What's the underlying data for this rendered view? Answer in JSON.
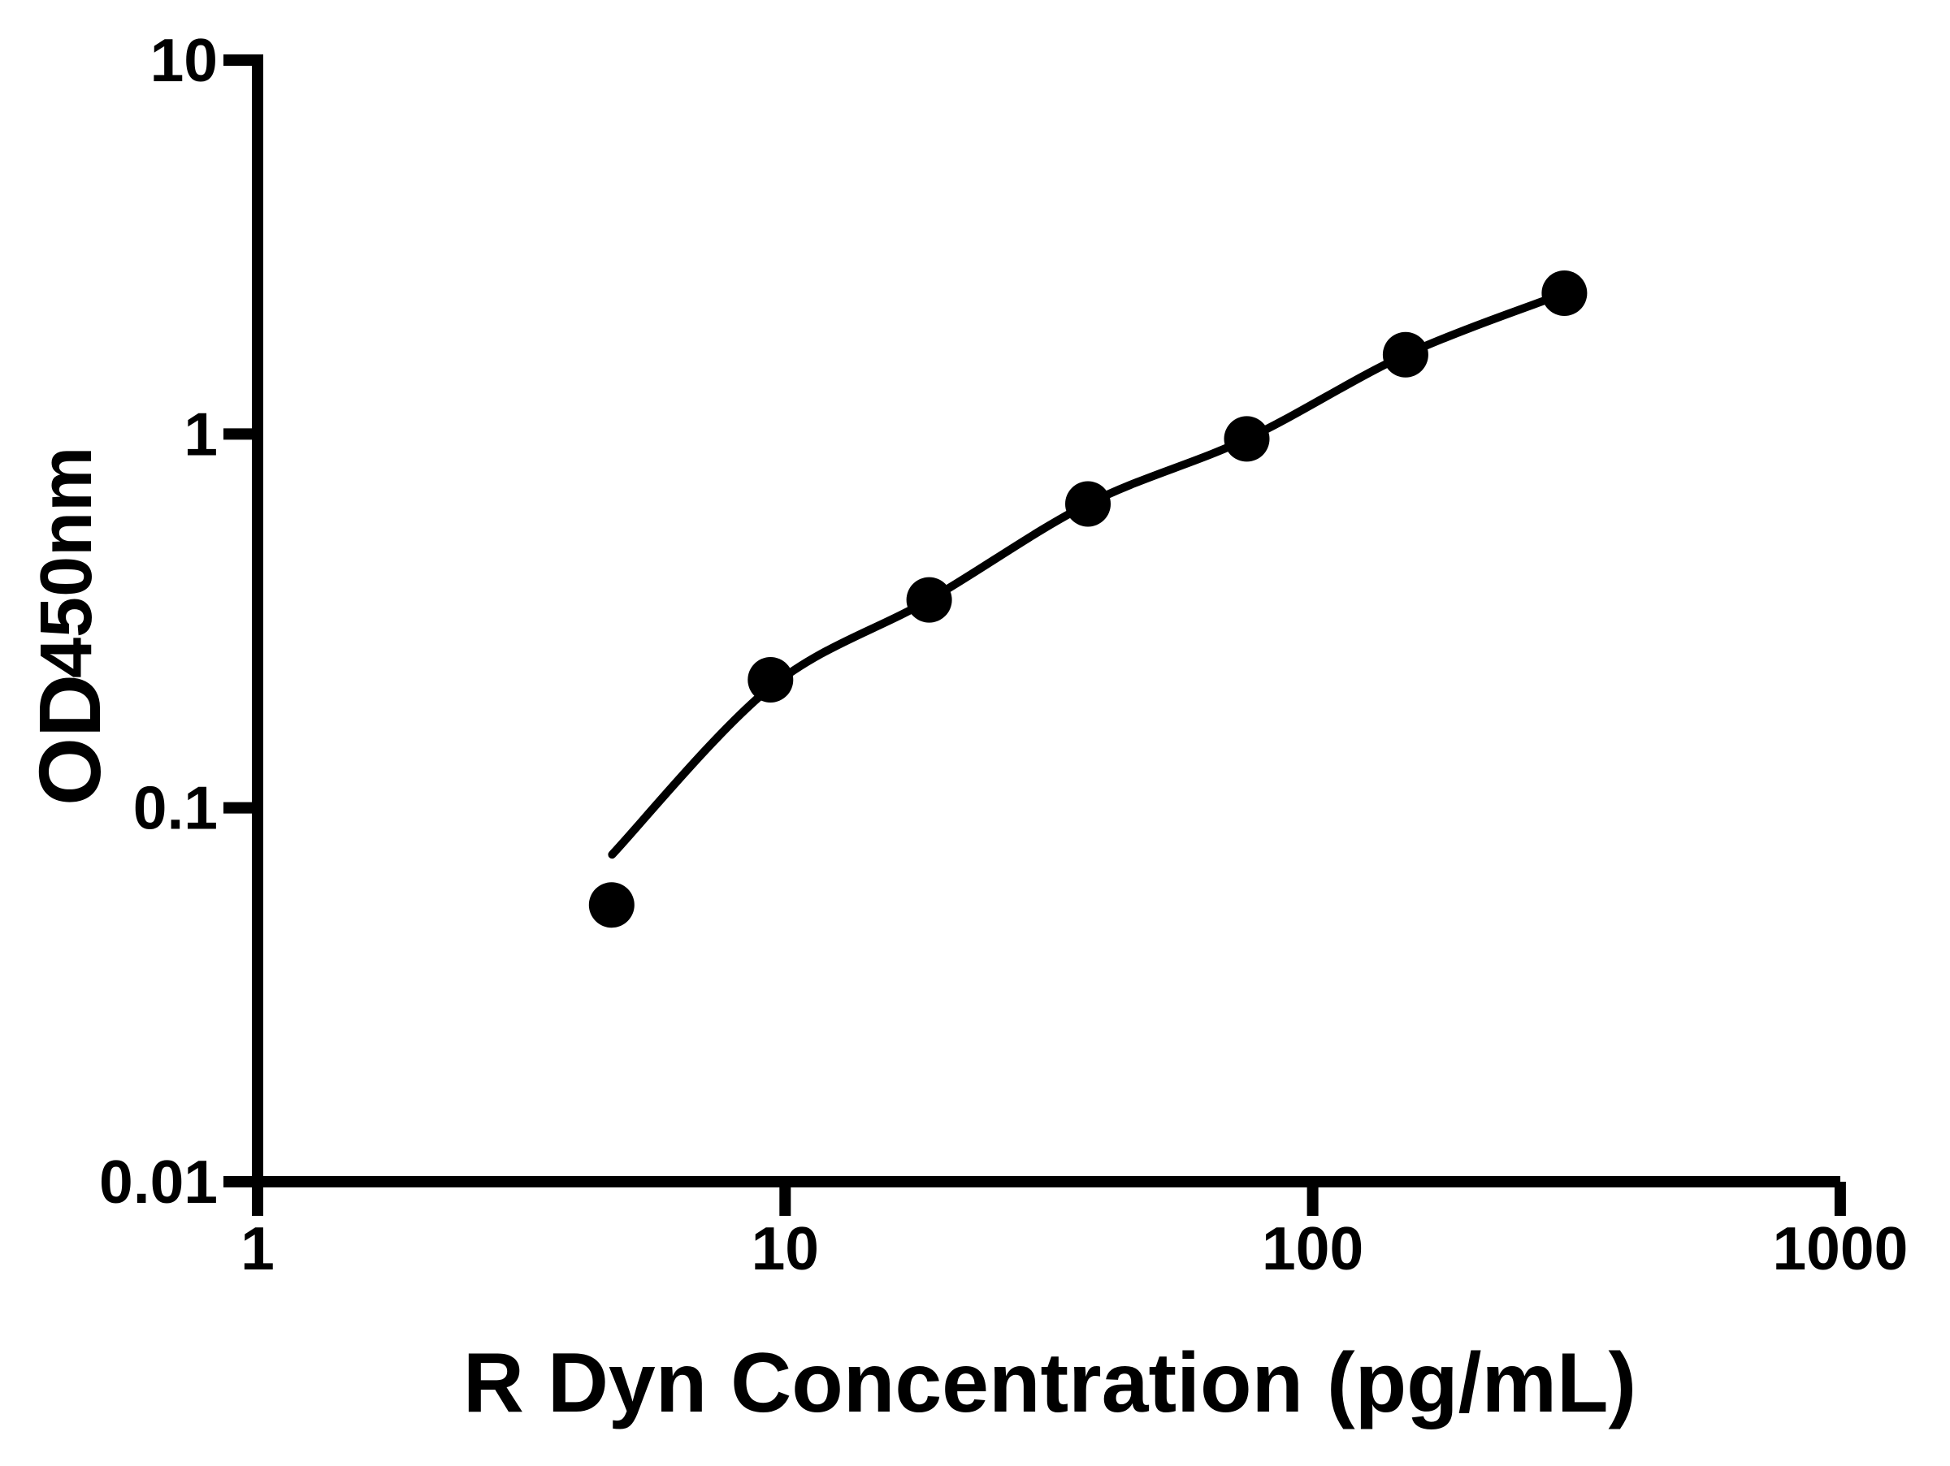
{
  "figure": {
    "background_color": "#ffffff",
    "foreground_color": "#000000"
  },
  "chart_data": {
    "type": "scatter",
    "title": "",
    "xlabel": "R Dyn Concentration (pg/mL)",
    "ylabel": "OD450nm",
    "ylabel_main": "OD",
    "ylabel_subscript": "450nm",
    "x_scale": "log",
    "y_scale": "log",
    "xlim": [
      1,
      1000
    ],
    "ylim": [
      0.01,
      10
    ],
    "grid": "off",
    "legend": "none",
    "x_ticks": [
      1,
      10,
      100,
      1000
    ],
    "x_tick_labels": [
      "1",
      "10",
      "100",
      "1000"
    ],
    "y_ticks": [
      0.01,
      0.1,
      1,
      10
    ],
    "y_tick_labels": [
      "0.01",
      "0.1",
      "1",
      "10"
    ],
    "series": [
      {
        "name": "standard-curve-points",
        "marker": "filled-circle",
        "color": "#000000",
        "x": [
          4.69,
          9.38,
          18.75,
          37.5,
          75,
          150,
          300
        ],
        "y": [
          0.055,
          0.22,
          0.36,
          0.65,
          0.97,
          1.63,
          2.38
        ]
      }
    ],
    "fit_curve": {
      "name": "four-parameter-logistic-fit",
      "color": "#000000",
      "anchors_x": [
        4.7,
        9.38,
        18.75,
        37.5,
        75,
        150,
        300
      ],
      "anchors_y": [
        0.075,
        0.21,
        0.36,
        0.65,
        0.97,
        1.63,
        2.38
      ]
    }
  }
}
